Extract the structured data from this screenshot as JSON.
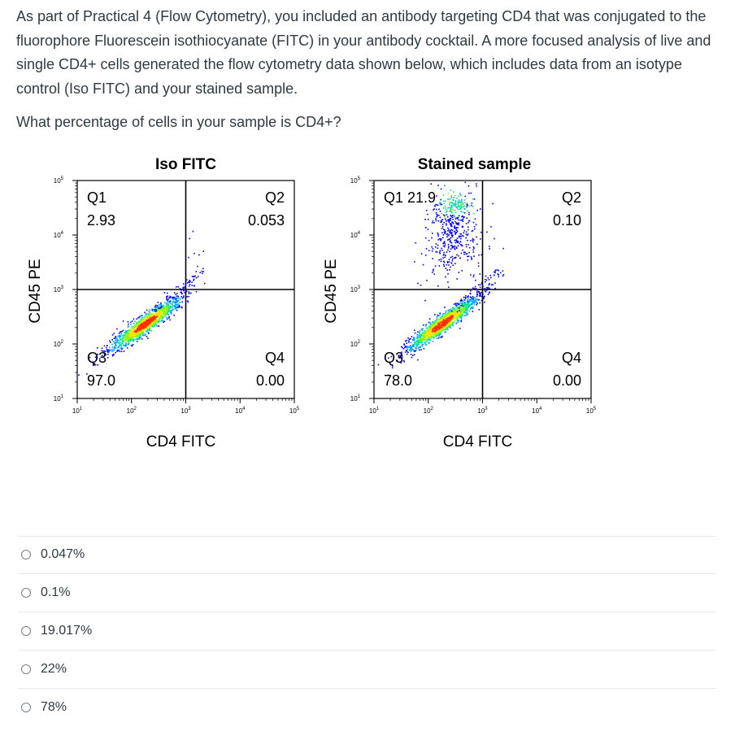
{
  "question": {
    "text": "As part of Practical 4 (Flow Cytometry), you included an antibody targeting CD4 that was conjugated to the fluorophore Fluorescein isothiocyanate (FITC) in your antibody cocktail. A more focused analysis of live and single CD4+ cells generated the flow cytometry data shown below, which includes data from an isotype control (Iso FITC) and your stained sample.",
    "prompt": "What percentage of cells in your sample is CD4+?"
  },
  "chart_data": [
    {
      "type": "scatter",
      "title": "Iso FITC",
      "xlabel": "CD4 FITC",
      "ylabel": "CD45 PE",
      "scale": "log",
      "xlim": [
        10,
        100000
      ],
      "ylim": [
        10,
        100000
      ],
      "x_ticks": [
        "10^1",
        "10^2",
        "10^3",
        "10^4",
        "10^5"
      ],
      "y_ticks": [
        "10^1",
        "10^2",
        "10^3",
        "10^4",
        "10^5"
      ],
      "gate": {
        "x": 1000,
        "y": 1000
      },
      "quadrants": [
        {
          "name": "Q1",
          "value": "2.93",
          "position": "top-left"
        },
        {
          "name": "Q2",
          "value": "0.053",
          "position": "top-right"
        },
        {
          "name": "Q3",
          "value": "97.0",
          "position": "bottom-left"
        },
        {
          "name": "Q4",
          "value": "0.00",
          "position": "bottom-right"
        }
      ],
      "populations": [
        {
          "center_x": 200,
          "center_y": 200,
          "description": "diagonal density cluster"
        }
      ]
    },
    {
      "type": "scatter",
      "title": "Stained sample",
      "xlabel": "CD4 FITC",
      "ylabel": "CD45 PE",
      "scale": "log",
      "xlim": [
        10,
        100000
      ],
      "ylim": [
        10,
        100000
      ],
      "x_ticks": [
        "10^1",
        "10^2",
        "10^3",
        "10^4",
        "10^5"
      ],
      "y_ticks": [
        "10^1",
        "10^2",
        "10^3",
        "10^4",
        "10^5"
      ],
      "gate": {
        "x": 1000,
        "y": 1000
      },
      "quadrants": [
        {
          "name": "Q1",
          "value": "21.9",
          "position": "top-left",
          "inline": true
        },
        {
          "name": "Q2",
          "value": "0.10",
          "position": "top-right"
        },
        {
          "name": "Q3",
          "value": "78.0",
          "position": "bottom-left"
        },
        {
          "name": "Q4",
          "value": "0.00",
          "position": "bottom-right"
        }
      ],
      "populations": [
        {
          "center_x": 200,
          "center_y": 200,
          "description": "diagonal density cluster"
        },
        {
          "center_x": 300,
          "center_y": 30000,
          "description": "upper CD45-high cluster"
        }
      ]
    }
  ],
  "answers": [
    {
      "label": "0.047%"
    },
    {
      "label": "0.1%"
    },
    {
      "label": "19.017%"
    },
    {
      "label": "22%"
    },
    {
      "label": "78%"
    }
  ],
  "colors": {
    "text": "#2d3b45",
    "divider": "#e6e9ec",
    "radio_border": "#73818c",
    "density": [
      "#0000ff",
      "#00a0ff",
      "#00e0a0",
      "#80ff00",
      "#ffe000",
      "#ff3000"
    ]
  }
}
